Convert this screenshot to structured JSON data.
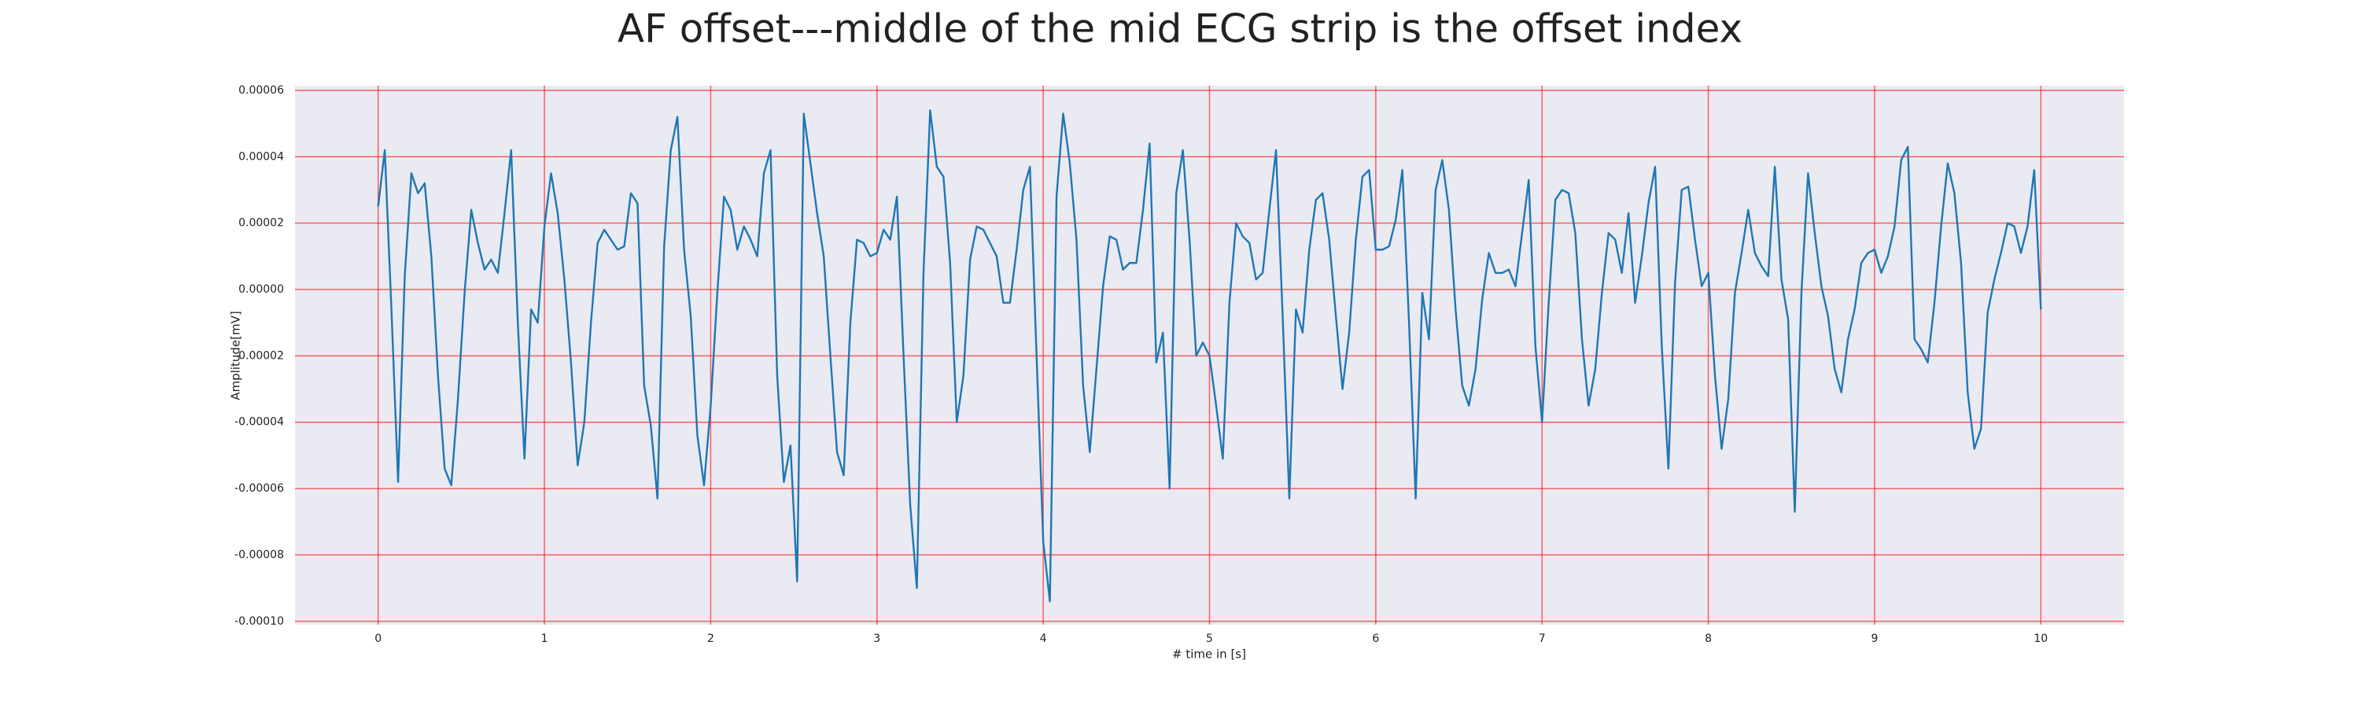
{
  "chart_data": {
    "type": "line",
    "title": "AF offset---middle of the mid ECG strip is the offset index",
    "xlabel": "# time in [s]",
    "ylabel": "Amplitude[mV]",
    "color": "#1f77b4",
    "grid": true,
    "grid_color": "#ff0000",
    "background": "#eaeaf2",
    "xlim": [
      -0.5,
      10.5
    ],
    "ylim": [
      -0.000101,
      6.14e-05
    ],
    "xticks": [
      0,
      1,
      2,
      3,
      4,
      5,
      6,
      7,
      8,
      9,
      10
    ],
    "yticks": [
      {
        "value": 6e-05,
        "label": "0.00006"
      },
      {
        "value": 4e-05,
        "label": "0.00004"
      },
      {
        "value": 2e-05,
        "label": "0.00002"
      },
      {
        "value": 0,
        "label": "0.00000"
      },
      {
        "value": -2e-05,
        "label": "-0.00002"
      },
      {
        "value": -4e-05,
        "label": "-0.00004"
      },
      {
        "value": -6e-05,
        "label": "-0.00006"
      },
      {
        "value": -8e-05,
        "label": "-0.00008"
      },
      {
        "value": -0.0001,
        "label": "-0.00010"
      }
    ],
    "x": [
      0,
      0.04,
      0.08,
      0.12,
      0.16,
      0.2,
      0.24,
      0.28,
      0.32,
      0.36,
      0.4,
      0.44,
      0.48,
      0.52,
      0.56,
      0.6,
      0.64,
      0.68,
      0.72,
      0.76,
      0.8,
      0.84,
      0.88,
      0.92,
      0.96,
      1,
      1.04,
      1.08,
      1.12,
      1.16,
      1.2,
      1.24,
      1.28,
      1.32,
      1.36,
      1.4,
      1.44,
      1.48,
      1.52,
      1.56,
      1.6,
      1.64,
      1.68,
      1.72,
      1.76,
      1.8,
      1.84,
      1.88,
      1.92,
      1.96,
      2,
      2.04,
      2.08,
      2.12,
      2.16,
      2.2,
      2.24,
      2.28,
      2.32,
      2.36,
      2.4,
      2.44,
      2.48,
      2.52,
      2.56,
      2.6,
      2.64,
      2.68,
      2.72,
      2.76,
      2.8,
      2.84,
      2.88,
      2.92,
      2.96,
      3,
      3.04,
      3.08,
      3.12,
      3.16,
      3.2,
      3.24,
      3.28,
      3.32,
      3.36,
      3.4,
      3.44,
      3.48,
      3.52,
      3.56,
      3.6,
      3.64,
      3.68,
      3.72,
      3.76,
      3.8,
      3.84,
      3.88,
      3.92,
      3.96,
      4,
      4.04,
      4.08,
      4.12,
      4.16,
      4.2,
      4.24,
      4.28,
      4.32,
      4.36,
      4.4,
      4.44,
      4.48,
      4.52,
      4.56,
      4.6,
      4.64,
      4.68,
      4.72,
      4.76,
      4.8,
      4.84,
      4.88,
      4.92,
      4.96,
      5,
      5.04,
      5.08,
      5.12,
      5.16,
      5.2,
      5.24,
      5.28,
      5.32,
      5.36,
      5.4,
      5.44,
      5.48,
      5.52,
      5.56,
      5.6,
      5.64,
      5.68,
      5.72,
      5.76,
      5.8,
      5.84,
      5.88,
      5.92,
      5.96,
      6,
      6.04,
      6.08,
      6.12,
      6.16,
      6.2,
      6.24,
      6.28,
      6.32,
      6.36,
      6.4,
      6.44,
      6.48,
      6.52,
      6.56,
      6.6,
      6.64,
      6.68,
      6.72,
      6.76,
      6.8,
      6.84,
      6.88,
      6.92,
      6.96,
      7,
      7.04,
      7.08,
      7.12,
      7.16,
      7.2,
      7.24,
      7.28,
      7.32,
      7.36,
      7.4,
      7.44,
      7.48,
      7.52,
      7.56,
      7.6,
      7.64,
      7.68,
      7.72,
      7.76,
      7.8,
      7.84,
      7.88,
      7.92,
      7.96,
      8,
      8.04,
      8.08,
      8.12,
      8.16,
      8.2,
      8.24,
      8.28,
      8.32,
      8.36,
      8.4,
      8.44,
      8.48,
      8.52,
      8.56,
      8.6,
      8.64,
      8.68,
      8.72,
      8.76,
      8.8,
      8.84,
      8.88,
      8.92,
      8.96,
      9,
      9.04,
      9.08,
      9.12,
      9.16,
      9.2,
      9.24,
      9.28,
      9.32,
      9.36,
      9.4,
      9.44,
      9.48,
      9.52,
      9.56,
      9.6,
      9.64,
      9.68,
      9.72,
      9.76,
      9.8,
      9.84,
      9.88,
      9.92,
      9.96,
      10
    ],
    "values": [
      2.5e-05,
      4.2e-05,
      -6e-06,
      -5.8e-05,
      4e-06,
      3.5e-05,
      2.9e-05,
      3.2e-05,
      1e-05,
      -2.6e-05,
      -5.4e-05,
      -5.9e-05,
      -3.3e-05,
      -1e-06,
      2.4e-05,
      1.4e-05,
      6e-06,
      9e-06,
      5e-06,
      2.3e-05,
      4.2e-05,
      -1e-05,
      -5.1e-05,
      -6e-06,
      -1e-05,
      1.9e-05,
      3.5e-05,
      2.3e-05,
      3e-06,
      -2.2e-05,
      -5.3e-05,
      -4e-05,
      -1e-05,
      1.4e-05,
      1.8e-05,
      1.5e-05,
      1.2e-05,
      1.3e-05,
      2.9e-05,
      2.6e-05,
      -2.9e-05,
      -4.1e-05,
      -6.3e-05,
      1.3e-05,
      4.2e-05,
      5.2e-05,
      1.2e-05,
      -8e-06,
      -4.4e-05,
      -5.9e-05,
      -3.5e-05,
      -1e-06,
      2.8e-05,
      2.4e-05,
      1.2e-05,
      1.9e-05,
      1.5e-05,
      1e-05,
      3.5e-05,
      4.2e-05,
      -2.6e-05,
      -5.8e-05,
      -4.7e-05,
      -8.8e-05,
      5.3e-05,
      3.8e-05,
      2.3e-05,
      1e-05,
      -2e-05,
      -4.9e-05,
      -5.6e-05,
      -1e-05,
      1.5e-05,
      1.4e-05,
      1e-05,
      1.1e-05,
      1.8e-05,
      1.5e-05,
      2.8e-05,
      -2e-05,
      -6.5e-05,
      -9e-05,
      5e-06,
      5.4e-05,
      3.7e-05,
      3.4e-05,
      8e-06,
      -4e-05,
      -2.6e-05,
      9e-06,
      1.9e-05,
      1.8e-05,
      1.4e-05,
      1e-05,
      -4e-06,
      -4e-06,
      1.2e-05,
      3e-05,
      3.7e-05,
      -2e-05,
      -7.6e-05,
      -9.4e-05,
      2.8e-05,
      5.3e-05,
      3.8e-05,
      1.5e-05,
      -2.9e-05,
      -4.9e-05,
      -2.4e-05,
      1e-06,
      1.6e-05,
      1.5e-05,
      6e-06,
      8e-06,
      8e-06,
      2.4e-05,
      4.4e-05,
      -2.2e-05,
      -1.3e-05,
      -6e-05,
      2.9e-05,
      4.2e-05,
      1.5e-05,
      -2e-05,
      -1.6e-05,
      -2e-05,
      -3.5e-05,
      -5.1e-05,
      -4e-06,
      2e-05,
      1.6e-05,
      1.4e-05,
      3e-06,
      5e-06,
      2.4e-05,
      4.2e-05,
      -8e-06,
      -6.3e-05,
      -6e-06,
      -1.3e-05,
      1.2e-05,
      2.7e-05,
      2.9e-05,
      1.5e-05,
      -8e-06,
      -3e-05,
      -1.3e-05,
      1.5e-05,
      3.4e-05,
      3.6e-05,
      1.2e-05,
      1.2e-05,
      1.3e-05,
      2.1e-05,
      3.6e-05,
      -1e-05,
      -6.3e-05,
      -1e-06,
      -1.5e-05,
      3e-05,
      3.9e-05,
      2.4e-05,
      -6e-06,
      -2.9e-05,
      -3.5e-05,
      -2.4e-05,
      -3e-06,
      1.1e-05,
      5e-06,
      5e-06,
      6e-06,
      1e-06,
      1.7e-05,
      3.3e-05,
      -1.7e-05,
      -4e-05,
      -4e-06,
      2.7e-05,
      3e-05,
      2.9e-05,
      1.7e-05,
      -1.5e-05,
      -3.5e-05,
      -2.4e-05,
      -1e-06,
      1.7e-05,
      1.5e-05,
      5e-06,
      2.3e-05,
      -4e-06,
      1e-05,
      2.6e-05,
      3.7e-05,
      -1.7e-05,
      -5.4e-05,
      2e-06,
      3e-05,
      3.1e-05,
      1.5e-05,
      1e-06,
      5e-06,
      -2.6e-05,
      -4.8e-05,
      -3.3e-05,
      -1e-06,
      1.1e-05,
      2.4e-05,
      1.1e-05,
      7e-06,
      4e-06,
      3.7e-05,
      3e-06,
      -9e-06,
      -6.7e-05,
      -1e-06,
      3.5e-05,
      1.7e-05,
      1e-06,
      -8e-06,
      -2.4e-05,
      -3.1e-05,
      -1.5e-05,
      -6e-06,
      8e-06,
      1.1e-05,
      1.2e-05,
      5e-06,
      1e-05,
      1.9e-05,
      3.9e-05,
      4.3e-05,
      -1.5e-05,
      -1.8e-05,
      -2.2e-05,
      -4e-06,
      1.9e-05,
      3.8e-05,
      2.9e-05,
      8e-06,
      -3.1e-05,
      -4.8e-05,
      -4.2e-05,
      -7e-06,
      3e-06,
      1.1e-05,
      2e-05,
      1.9e-05,
      1.1e-05,
      1.9e-05,
      3.6e-05,
      -6e-06
    ]
  }
}
